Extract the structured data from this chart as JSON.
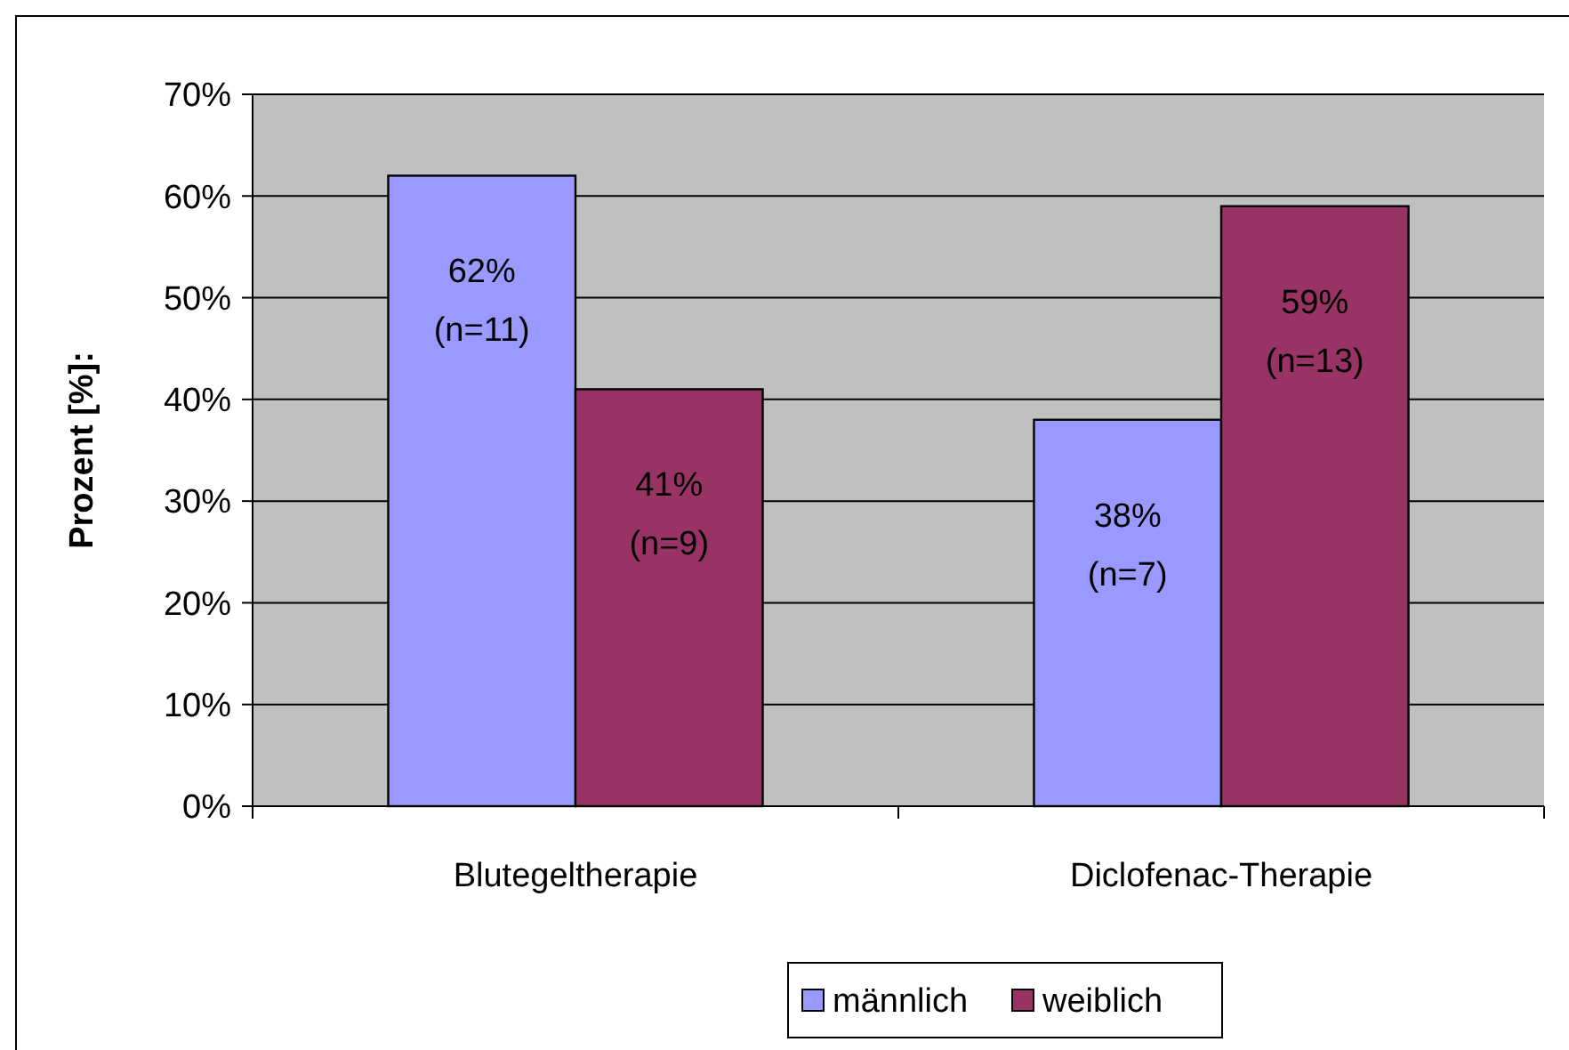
{
  "chart_data": {
    "type": "bar",
    "ylabel": "Prozent [%]:",
    "categories": [
      "Blutegeltherapie",
      "Diclofenac-Therapie"
    ],
    "series": [
      {
        "name": "männlich",
        "color": "#9999ff",
        "values": [
          62,
          38
        ],
        "value_labels": [
          "62%\n(n=11)",
          "38%\n(n=7)"
        ]
      },
      {
        "name": "weiblich",
        "color": "#993366",
        "values": [
          41,
          59
        ],
        "value_labels": [
          "41%\n(n=9)",
          "59%\n(n=13)"
        ]
      }
    ],
    "ylim": [
      0,
      70
    ],
    "yticks": [
      {
        "value": 0,
        "label": "0%"
      },
      {
        "value": 10,
        "label": "10%"
      },
      {
        "value": 20,
        "label": "20%"
      },
      {
        "value": 30,
        "label": "30%"
      },
      {
        "value": 40,
        "label": "40%"
      },
      {
        "value": 50,
        "label": "50%"
      },
      {
        "value": 60,
        "label": "60%"
      },
      {
        "value": 70,
        "label": "70%"
      }
    ],
    "grid": "y",
    "legend": "bottom"
  }
}
